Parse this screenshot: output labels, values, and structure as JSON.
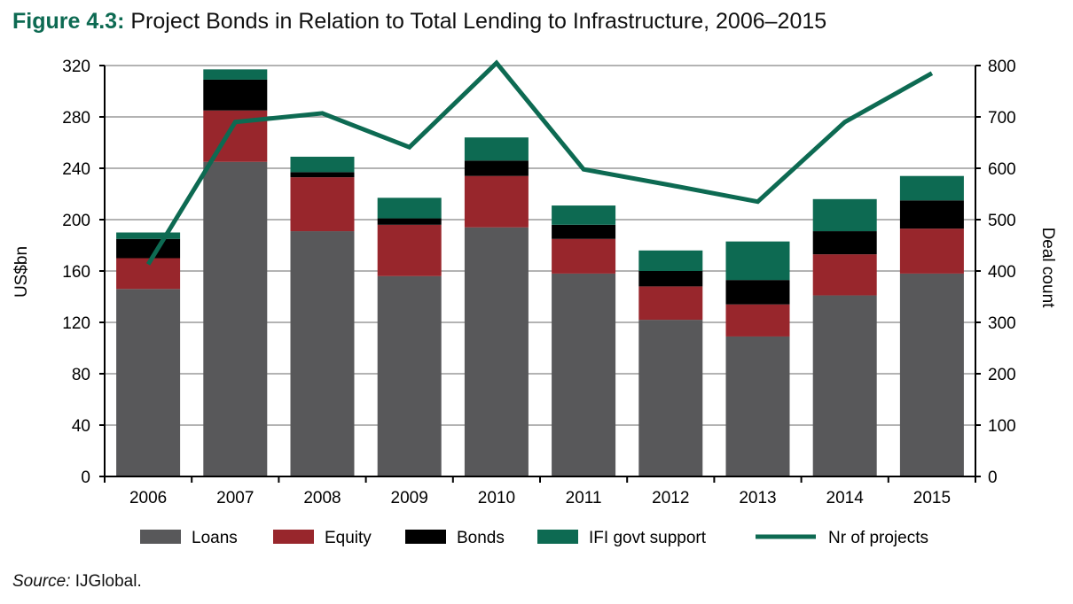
{
  "title": {
    "figure": "Figure 4.3:",
    "text": "Project Bonds in Relation to Total Lending to Infrastructure, 2006–2015"
  },
  "source": {
    "label": "Source:",
    "text": "IJGlobal."
  },
  "colors": {
    "loans": "#58585a",
    "equity": "#98262c",
    "bonds": "#000000",
    "ifi": "#0d6a52",
    "line": "#0d6a52",
    "grid": "#b3b3b3",
    "title_accent": "#0d6a52"
  },
  "chart_data": {
    "type": "bar",
    "stacked": true,
    "categories": [
      "2006",
      "2007",
      "2008",
      "2009",
      "2010",
      "2011",
      "2012",
      "2013",
      "2014",
      "2015"
    ],
    "series": [
      {
        "name": "Loans",
        "values": [
          146,
          245,
          191,
          156,
          194,
          158,
          122,
          109,
          141,
          158
        ]
      },
      {
        "name": "Equity",
        "values": [
          24,
          40,
          42,
          40,
          40,
          27,
          26,
          25,
          32,
          35
        ]
      },
      {
        "name": "Bonds",
        "values": [
          15,
          24,
          4,
          5,
          12,
          11,
          12,
          19,
          18,
          22
        ]
      },
      {
        "name": "IFI govt support",
        "values": [
          5,
          8,
          12,
          16,
          18,
          15,
          16,
          30,
          25,
          19
        ]
      }
    ],
    "line_series": {
      "name": "Nr of projects",
      "axis": "right",
      "values": [
        413,
        690,
        707,
        641,
        805,
        598,
        567,
        535,
        690,
        785
      ]
    },
    "ylabel": "US$bn",
    "ylabel_right": "Deal count",
    "ylim": [
      0,
      320
    ],
    "ylim_right": [
      0,
      800
    ],
    "yticks": [
      "0",
      "40",
      "80",
      "120",
      "160",
      "200",
      "240",
      "280",
      "320"
    ],
    "yticks_right": [
      "0",
      "100",
      "200",
      "300",
      "400",
      "500",
      "600",
      "700",
      "800"
    ],
    "grid": true,
    "legend_position": "bottom"
  }
}
